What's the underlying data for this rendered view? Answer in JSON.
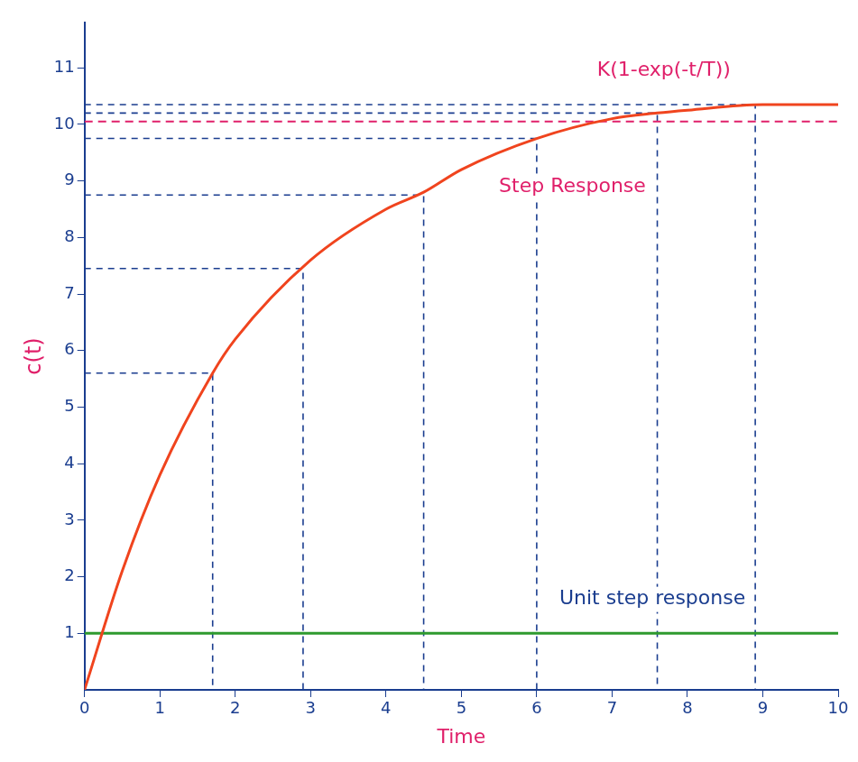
{
  "chart_data": {
    "type": "line",
    "x_label": "Time",
    "y_label": "c(t)",
    "xlim": [
      0,
      10
    ],
    "ylim": [
      0,
      11.8
    ],
    "xticks": [
      0,
      1,
      2,
      3,
      4,
      5,
      6,
      7,
      8,
      9,
      10
    ],
    "yticks": [
      1,
      2,
      3,
      4,
      5,
      6,
      7,
      8,
      9,
      10,
      11
    ],
    "grid": false,
    "series": [
      {
        "name": "Step Response",
        "color": "#f0441e",
        "line_style": "solid",
        "x": [
          0,
          0.5,
          1,
          1.7,
          2,
          3,
          4,
          4.5,
          5,
          6,
          7,
          7.6,
          8,
          9,
          10
        ],
        "values": [
          0,
          2.1,
          3.8,
          5.6,
          6.2,
          7.6,
          8.5,
          8.8,
          9.2,
          9.75,
          10.1,
          10.2,
          10.25,
          10.35,
          10.35
        ],
        "label_x": 5.5,
        "label_y": 8.9
      },
      {
        "name": "Unit step response",
        "color": "#2e9a2e",
        "line_style": "solid",
        "x": [
          0,
          10
        ],
        "values": [
          1,
          1
        ],
        "label_x": 6.3,
        "label_y": 1.6
      }
    ],
    "asymptote": {
      "y": 10.05,
      "label": "K(1-exp(-t/T))",
      "label_x": 6.8,
      "label_y": 10.95,
      "color": "#e0206a",
      "line_style": "dashed"
    },
    "projections": [
      {
        "x": 1.7,
        "y": 5.6
      },
      {
        "x": 2.9,
        "y": 7.45
      },
      {
        "x": 4.5,
        "y": 8.75
      },
      {
        "x": 6.0,
        "y": 9.75
      },
      {
        "x": 7.6,
        "y": 10.2
      },
      {
        "x": 8.9,
        "y": 10.35
      }
    ]
  }
}
